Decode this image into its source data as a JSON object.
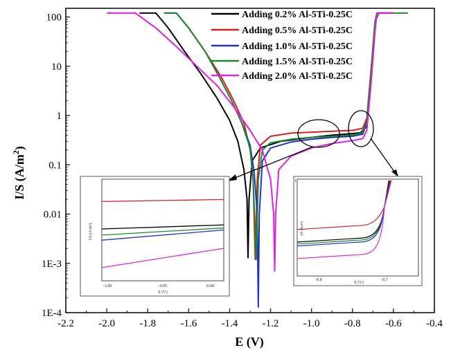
{
  "chart_data": {
    "type": "line",
    "xlabel": "E (V)",
    "ylabel_main": "I/S (A/m",
    "ylabel_sup": "2",
    "ylabel_close": ")",
    "yscale": "log",
    "xlim": [
      -2.2,
      -0.4
    ],
    "ylim": [
      0.0001,
      150
    ],
    "x_ticks": [
      -2.2,
      -2.0,
      -1.8,
      -1.6,
      -1.4,
      -1.2,
      -1.0,
      -0.8,
      -0.6,
      -0.4
    ],
    "x_tick_labels": [
      "-2.2",
      "-2.0",
      "-1.8",
      "-1.6",
      "-1.4",
      "-1.2",
      "-1.0",
      "-0.8",
      "-0.6",
      "-0.4"
    ],
    "y_ticks": [
      0.0001,
      0.001,
      0.01,
      0.1,
      1,
      10,
      100
    ],
    "y_tick_labels": [
      "1E-4",
      "1E-3",
      "0.01",
      "0.1",
      "1",
      "10",
      "100"
    ],
    "grid": false,
    "legend_position": "top-right",
    "series": [
      {
        "name": "Adding 0.2% Al-5Ti-0.25C",
        "color": "#000000",
        "points": [
          [
            -1.84,
            120
          ],
          [
            -1.76,
            120
          ],
          [
            -1.7,
            60
          ],
          [
            -1.62,
            20
          ],
          [
            -1.54,
            7
          ],
          [
            -1.46,
            2.2
          ],
          [
            -1.4,
            0.8
          ],
          [
            -1.36,
            0.3
          ],
          [
            -1.33,
            0.08
          ],
          [
            -1.315,
            0.02
          ],
          [
            -1.31,
            0.0013
          ],
          [
            -1.305,
            0.02
          ],
          [
            -1.29,
            0.12
          ],
          [
            -1.25,
            0.22
          ],
          [
            -1.15,
            0.3
          ],
          [
            -1.0,
            0.36
          ],
          [
            -0.9,
            0.4
          ],
          [
            -0.8,
            0.43
          ],
          [
            -0.76,
            0.45
          ],
          [
            -0.73,
            0.6
          ],
          [
            -0.71,
            5
          ],
          [
            -0.69,
            60
          ],
          [
            -0.68,
            120
          ],
          [
            -0.6,
            120
          ]
        ]
      },
      {
        "name": "Adding 0.5% Al-5Ti-0.25C",
        "color": "#d42020",
        "points": [
          [
            -1.72,
            120
          ],
          [
            -1.66,
            120
          ],
          [
            -1.6,
            60
          ],
          [
            -1.52,
            20
          ],
          [
            -1.44,
            6
          ],
          [
            -1.38,
            2
          ],
          [
            -1.33,
            0.7
          ],
          [
            -1.3,
            0.2
          ],
          [
            -1.285,
            0.05
          ],
          [
            -1.275,
            0.0012
          ],
          [
            -1.265,
            0.05
          ],
          [
            -1.25,
            0.25
          ],
          [
            -1.2,
            0.38
          ],
          [
            -1.1,
            0.44
          ],
          [
            -1.0,
            0.46
          ],
          [
            -0.9,
            0.48
          ],
          [
            -0.8,
            0.5
          ],
          [
            -0.75,
            0.55
          ],
          [
            -0.73,
            0.9
          ],
          [
            -0.71,
            8
          ],
          [
            -0.69,
            80
          ],
          [
            -0.68,
            120
          ],
          [
            -0.6,
            120
          ]
        ]
      },
      {
        "name": "Adding 1.0% Al-5Ti-0.25C",
        "color": "#2030d0",
        "points": [
          [
            -1.72,
            120
          ],
          [
            -1.66,
            120
          ],
          [
            -1.6,
            60
          ],
          [
            -1.52,
            20
          ],
          [
            -1.45,
            6
          ],
          [
            -1.39,
            2
          ],
          [
            -1.34,
            0.7
          ],
          [
            -1.3,
            0.25
          ],
          [
            -1.28,
            0.07
          ],
          [
            -1.265,
            0.01
          ],
          [
            -1.26,
            0.00013
          ],
          [
            -1.255,
            0.01
          ],
          [
            -1.24,
            0.12
          ],
          [
            -1.2,
            0.22
          ],
          [
            -1.1,
            0.29
          ],
          [
            -1.0,
            0.33
          ],
          [
            -0.9,
            0.36
          ],
          [
            -0.8,
            0.38
          ],
          [
            -0.75,
            0.42
          ],
          [
            -0.73,
            0.7
          ],
          [
            -0.71,
            6
          ],
          [
            -0.69,
            70
          ],
          [
            -0.68,
            120
          ],
          [
            -0.6,
            120
          ]
        ]
      },
      {
        "name": "Adding 1.5% Al-5Ti-0.25C",
        "color": "#1a8a2a",
        "points": [
          [
            -1.72,
            120
          ],
          [
            -1.66,
            120
          ],
          [
            -1.6,
            60
          ],
          [
            -1.52,
            20
          ],
          [
            -1.45,
            6
          ],
          [
            -1.39,
            2
          ],
          [
            -1.34,
            0.7
          ],
          [
            -1.3,
            0.22
          ],
          [
            -1.285,
            0.05
          ],
          [
            -1.27,
            0.0012
          ],
          [
            -1.26,
            0.05
          ],
          [
            -1.24,
            0.2
          ],
          [
            -1.2,
            0.28
          ],
          [
            -1.1,
            0.33
          ],
          [
            -1.0,
            0.36
          ],
          [
            -0.9,
            0.38
          ],
          [
            -0.8,
            0.4
          ],
          [
            -0.75,
            0.45
          ],
          [
            -0.73,
            0.8
          ],
          [
            -0.71,
            7
          ],
          [
            -0.69,
            80
          ],
          [
            -0.67,
            120
          ],
          [
            -0.53,
            120
          ]
        ]
      },
      {
        "name": "Adding 2.0% Al-5Ti-0.25C",
        "color": "#e020e0",
        "points": [
          [
            -2.0,
            120
          ],
          [
            -1.86,
            120
          ],
          [
            -1.76,
            60
          ],
          [
            -1.66,
            25
          ],
          [
            -1.56,
            10
          ],
          [
            -1.46,
            4
          ],
          [
            -1.38,
            1.5
          ],
          [
            -1.3,
            0.5
          ],
          [
            -1.24,
            0.2
          ],
          [
            -1.2,
            0.05
          ],
          [
            -1.185,
            0.01
          ],
          [
            -1.18,
            0.0007
          ],
          [
            -1.175,
            0.01
          ],
          [
            -1.16,
            0.08
          ],
          [
            -1.1,
            0.15
          ],
          [
            -1.0,
            0.22
          ],
          [
            -0.9,
            0.27
          ],
          [
            -0.8,
            0.31
          ],
          [
            -0.75,
            0.34
          ],
          [
            -0.73,
            0.5
          ],
          [
            -0.71,
            4
          ],
          [
            -0.69,
            50
          ],
          [
            -0.68,
            120
          ],
          [
            -0.6,
            120
          ]
        ]
      }
    ],
    "insets": [
      {
        "x_tick_labels": [
          "-1.00",
          "-0.95",
          "-0.90"
        ],
        "xlabel": "E (V)",
        "ylabel": "I/S (A/m²)",
        "lines": [
          {
            "color": "#d42020",
            "y": [
              0.22,
              0.2
            ]
          },
          {
            "color": "#000000",
            "y": [
              0.49,
              0.45
            ]
          },
          {
            "color": "#1a8a2a",
            "y": [
              0.55,
              0.48
            ]
          },
          {
            "color": "#2030d0",
            "y": [
              0.6,
              0.5
            ]
          },
          {
            "color": "#e020e0",
            "y": [
              0.87,
              0.68
            ]
          }
        ]
      },
      {
        "x_tick_labels": [
          "-0.8",
          "-0.7"
        ],
        "xlabel": "E (V)",
        "ylabel": "I/S (A/m²)",
        "y_tick_label": "1",
        "lines": [
          {
            "color": "#d42020",
            "y_start": 0.52
          },
          {
            "color": "#000000",
            "y_start": 0.65
          },
          {
            "color": "#1a8a2a",
            "y_start": 0.67
          },
          {
            "color": "#2030d0",
            "y_start": 0.69
          },
          {
            "color": "#e020e0",
            "y_start": 0.82
          }
        ]
      }
    ]
  }
}
